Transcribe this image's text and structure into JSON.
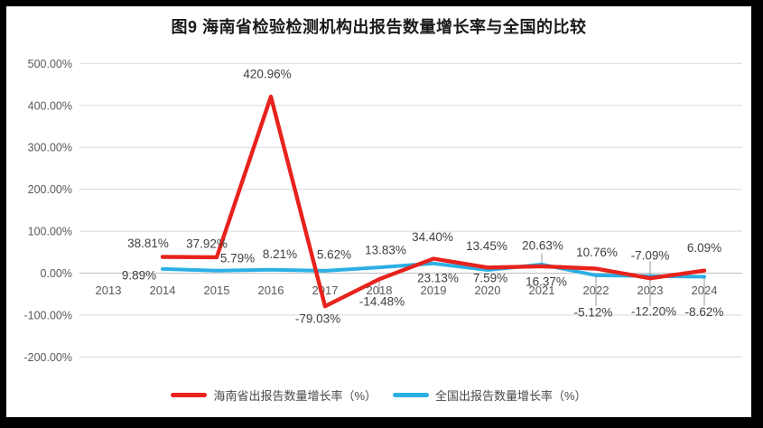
{
  "figure": {
    "title": "图9 海南省检验检测机构出报告数量增长率与全国的比较"
  },
  "chart_data": {
    "type": "line",
    "title": "图9 海南省检验检测机构出报告数量增长率与全国的比较",
    "categories": [
      "2013",
      "2014",
      "2015",
      "2016",
      "2017",
      "2018",
      "2019",
      "2020",
      "2021",
      "2022",
      "2023",
      "2024"
    ],
    "xlabel": "",
    "ylabel": "",
    "ylim": [
      -200,
      500
    ],
    "y_tick_step": 100,
    "y_tick_labels": [
      "500.00%",
      "400.00%",
      "300.00%",
      "200.00%",
      "100.00%",
      "0.00%",
      "-100.00%",
      "-200.00%"
    ],
    "grid": true,
    "legend_position": "bottom",
    "series": [
      {
        "name": "海南省出报告数量增长率（%）",
        "color": "#e8221c",
        "values": [
          null,
          38.81,
          37.92,
          420.96,
          -79.03,
          -14.48,
          34.4,
          13.45,
          16.37,
          10.76,
          -12.2,
          6.09
        ],
        "labels": [
          null,
          "38.81%",
          "37.92%",
          "420.96%",
          "-79.03%",
          "-14.48%",
          "34.40%",
          "13.45%",
          "16.37%",
          "10.76%",
          "-12.20%",
          "6.09%"
        ],
        "label_offsets": [
          null,
          [
            -16,
            -15
          ],
          [
            -11,
            -15
          ],
          [
            -4,
            -25
          ],
          [
            -8,
            14
          ],
          [
            3,
            25
          ],
          [
            -1,
            -24
          ],
          [
            -1,
            -24
          ],
          [
            5,
            17
          ],
          [
            1,
            -18
          ],
          [
            4,
            37
          ],
          [
            0,
            -25
          ]
        ]
      },
      {
        "name": "全国出报告数量增长率（%）",
        "color": "#2bafe4",
        "values": [
          null,
          9.89,
          5.79,
          8.21,
          5.62,
          13.83,
          23.13,
          7.59,
          20.63,
          -5.12,
          -7.09,
          -8.62
        ],
        "labels": [
          null,
          "9.89%",
          "5.79%",
          "8.21%",
          "5.62%",
          "13.83%",
          "23.13%",
          "7.59%",
          "20.63%",
          "-5.12%",
          "-7.09%",
          "-8.62%"
        ],
        "label_offsets": [
          null,
          [
            -26,
            7
          ],
          [
            23,
            -14
          ],
          [
            10,
            -17
          ],
          [
            10,
            -18
          ],
          [
            7,
            -19
          ],
          [
            5,
            16
          ],
          [
            3,
            9
          ],
          [
            1,
            -21
          ],
          [
            -3,
            41
          ],
          [
            0,
            -23
          ],
          [
            0,
            39
          ]
        ]
      }
    ],
    "leader_lines": [
      {
        "category": "2018",
        "from_pct": -15,
        "to_pct": -50
      },
      {
        "category": "2021",
        "from_pct": 47,
        "to_pct": 24
      },
      {
        "category": "2022",
        "from_pct": -6,
        "to_pct": -78
      },
      {
        "category": "2023",
        "from_pct": 28,
        "to_pct": -78
      },
      {
        "category": "2024",
        "from_pct": -11,
        "to_pct": -78
      }
    ],
    "colors": {
      "grid": "#d9d9d9",
      "zero_axis": "#bfbfbf",
      "axis_text": "#595959",
      "data_label_text": "#3f3f3f",
      "leader": "#a6a6a6",
      "frame": "#000000",
      "background": "#ffffff"
    }
  }
}
